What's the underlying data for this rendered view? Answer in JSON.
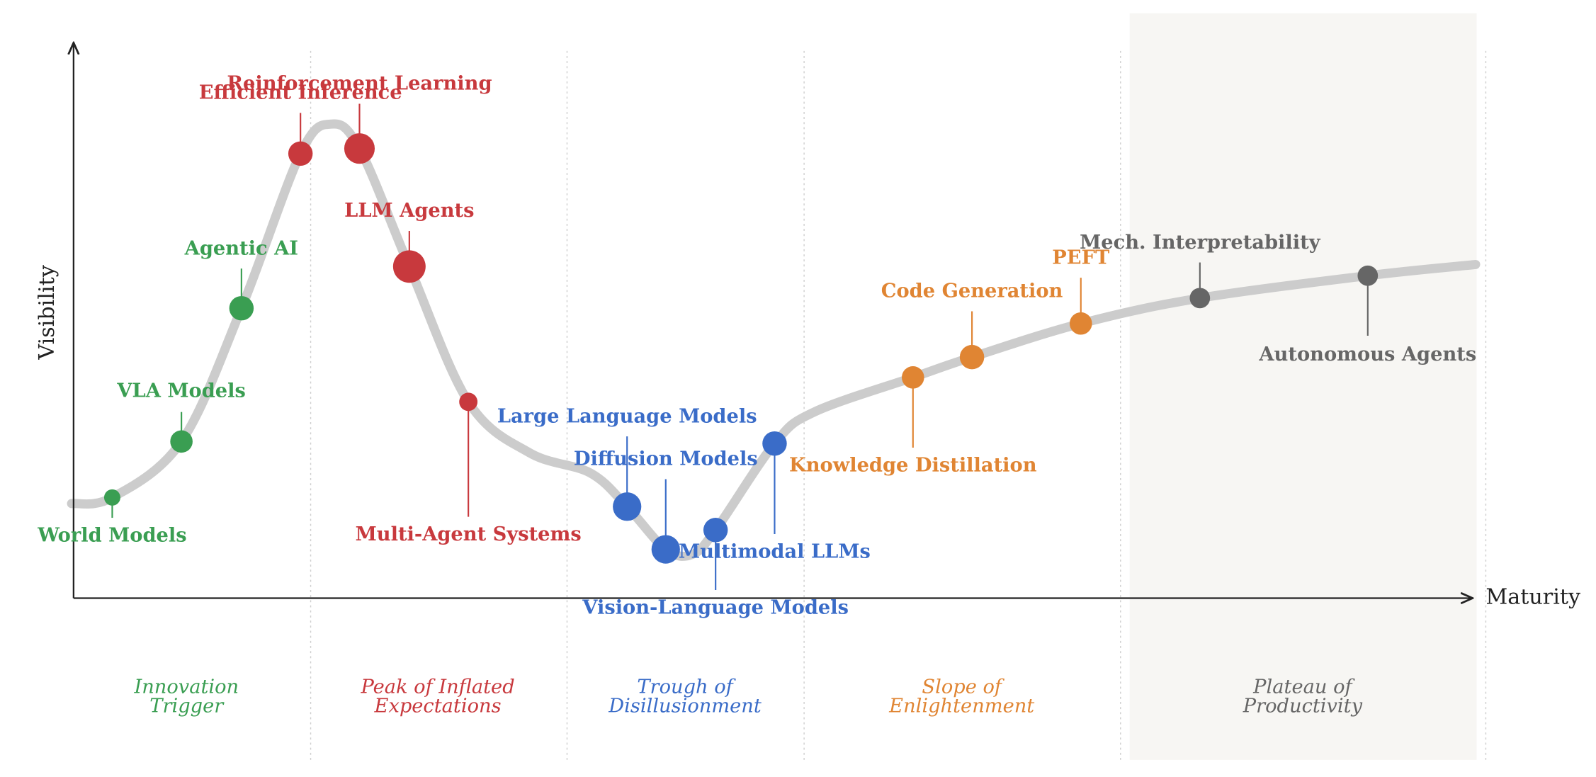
{
  "axes": {
    "y_label": "Visibility",
    "x_label": "Maturity"
  },
  "phases": [
    {
      "lines": [
        "Innovation",
        "Trigger"
      ],
      "color": "#3a9e52"
    },
    {
      "lines": [
        "Peak of Inflated",
        "Expectations"
      ],
      "color": "#c8393d"
    },
    {
      "lines": [
        "Trough of",
        "Disillusionment"
      ],
      "color": "#3a6cc8"
    },
    {
      "lines": [
        "Slope of",
        "Enlightenment"
      ],
      "color": "#e08533"
    },
    {
      "lines": [
        "Plateau of",
        "Productivity"
      ],
      "color": "#666666"
    }
  ],
  "technologies": [
    {
      "label": "World Models",
      "phase": 0
    },
    {
      "label": "VLA Models",
      "phase": 0
    },
    {
      "label": "Agentic AI",
      "phase": 0
    },
    {
      "label": "Efficient Inference",
      "phase": 1
    },
    {
      "label": "Reinforcement Learning",
      "phase": 1
    },
    {
      "label": "LLM Agents",
      "phase": 1
    },
    {
      "label": "Multi-Agent Systems",
      "phase": 1
    },
    {
      "label": "Large Language Models",
      "phase": 2
    },
    {
      "label": "Diffusion Models",
      "phase": 2
    },
    {
      "label": "Vision-Language Models",
      "phase": 2
    },
    {
      "label": "Multimodal LLMs",
      "phase": 2
    },
    {
      "label": "Knowledge Distillation",
      "phase": 3
    },
    {
      "label": "Code Generation",
      "phase": 3
    },
    {
      "label": "PEFT",
      "phase": 3
    },
    {
      "label": "Mech. Interpretability",
      "phase": 4
    },
    {
      "label": "Autonomous Agents",
      "phase": 4
    }
  ]
}
